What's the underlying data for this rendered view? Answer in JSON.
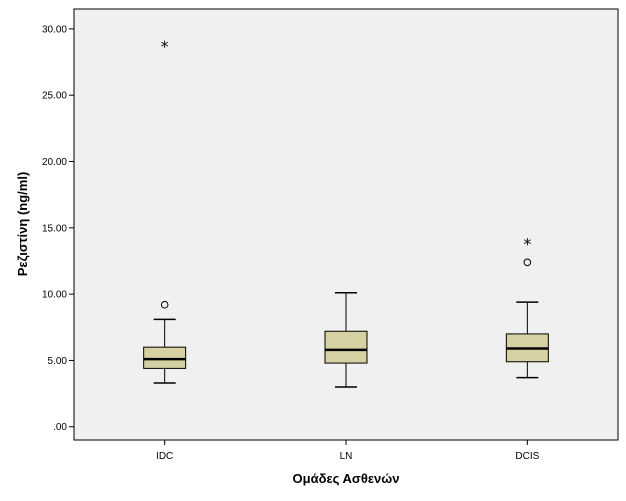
{
  "chart_data": {
    "type": "boxplot",
    "xlabel": "Ομάδες Ασθενών",
    "ylabel": "Ρεζιστίνη (ng/ml)",
    "ylim": [
      -1.0,
      31.5
    ],
    "yticks": [
      0,
      5,
      10,
      15,
      20,
      25,
      30
    ],
    "ytick_labels": [
      ".00",
      "5.00",
      "10.00",
      "15.00",
      "20.00",
      "25.00",
      "30.00"
    ],
    "categories": [
      "IDC",
      "LN",
      "DCIS"
    ],
    "boxes": [
      {
        "category": "IDC",
        "whisker_low": 3.3,
        "q1": 4.4,
        "median": 5.1,
        "q3": 6.0,
        "whisker_high": 8.1,
        "outliers": [
          9.2
        ],
        "extremes": [
          28.7
        ]
      },
      {
        "category": "LN",
        "whisker_low": 3.0,
        "q1": 4.8,
        "median": 5.8,
        "q3": 7.2,
        "whisker_high": 10.1,
        "outliers": [],
        "extremes": []
      },
      {
        "category": "DCIS",
        "whisker_low": 3.7,
        "q1": 4.9,
        "median": 5.9,
        "q3": 7.0,
        "whisker_high": 9.4,
        "outliers": [
          12.4
        ],
        "extremes": [
          13.8
        ]
      }
    ],
    "box_color": "#d6d1a2",
    "plot_background": "#f0f0f0"
  }
}
